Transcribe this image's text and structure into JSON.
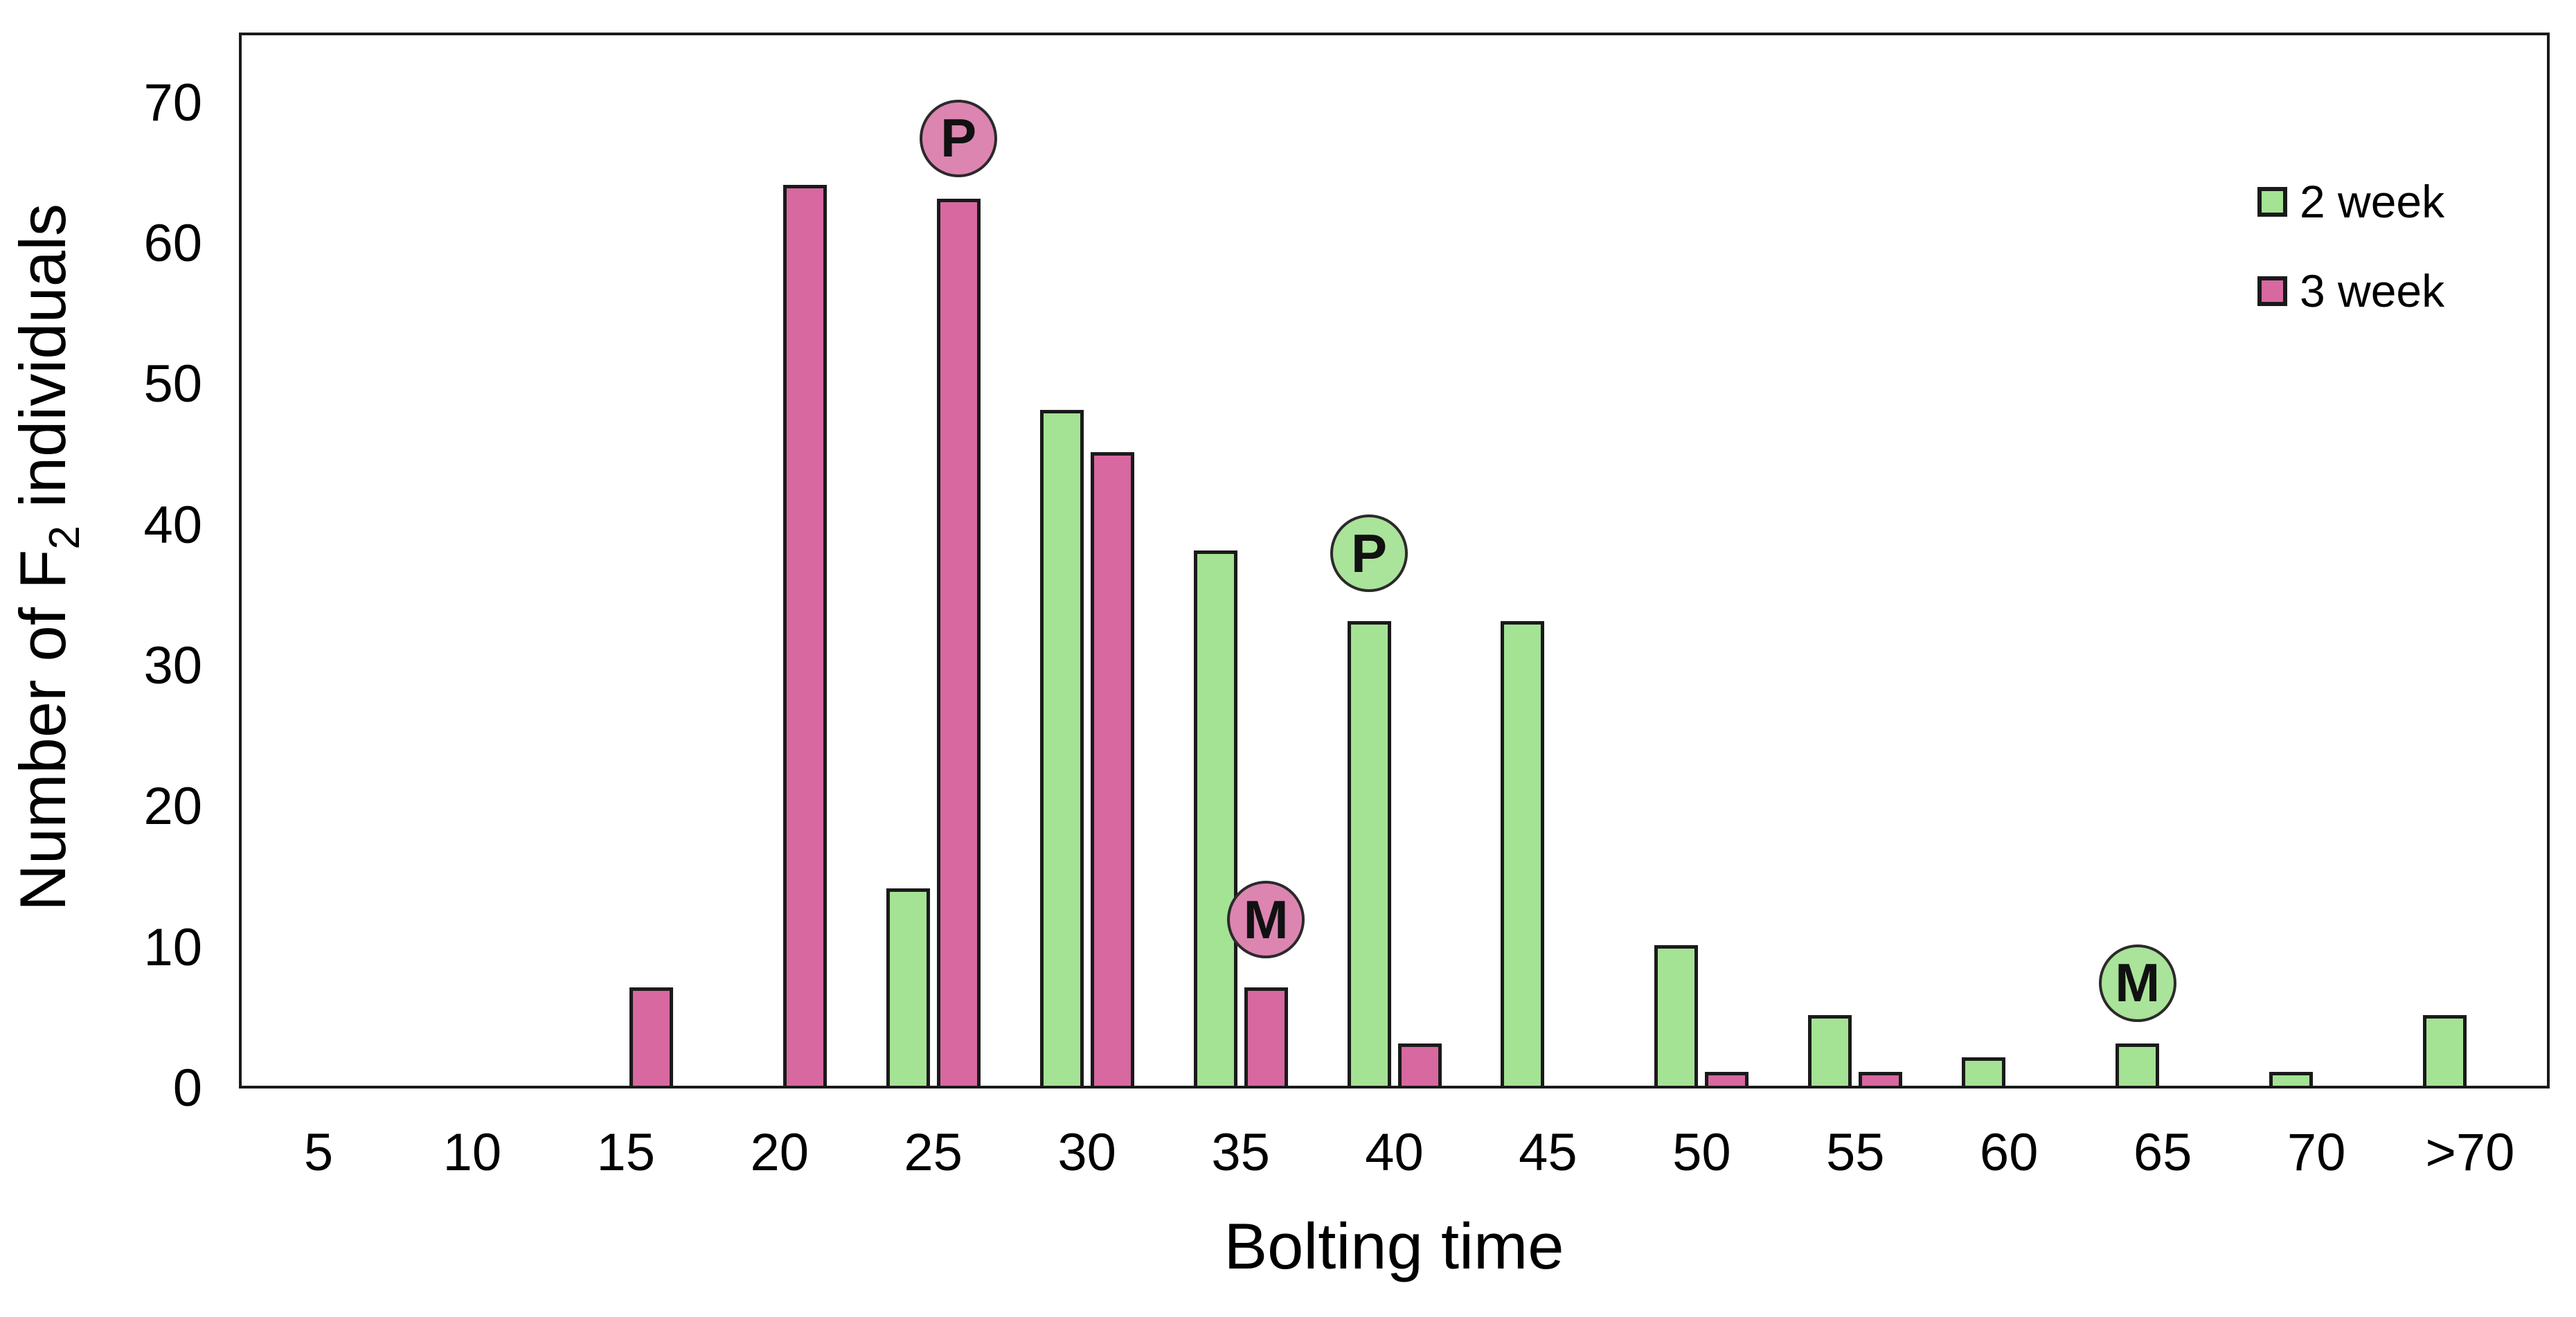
{
  "figure": {
    "background": "#ffffff",
    "frame_color": "#1a1a1a"
  },
  "chart_data": {
    "type": "bar",
    "title": "",
    "xlabel": "Bolting time",
    "ylabel": "Number of F2 individuals",
    "ylabel_prefix": "Number of F",
    "ylabel_sub": "2",
    "ylabel_suffix": " individuals",
    "categories": [
      "5",
      "10",
      "15",
      "20",
      "25",
      "30",
      "35",
      "40",
      "45",
      "50",
      "55",
      "60",
      "65",
      "70",
      ">70"
    ],
    "y_ticks": [
      "0",
      "10",
      "20",
      "30",
      "40",
      "50",
      "60",
      "70"
    ],
    "ylim": [
      0,
      75
    ],
    "grid": false,
    "legend_position": "top-right",
    "series": [
      {
        "name": "2 week",
        "color": "#A4E294",
        "values": [
          0,
          0,
          0,
          0,
          14,
          48,
          38,
          33,
          33,
          10,
          5,
          2,
          3,
          1,
          5
        ]
      },
      {
        "name": "3 week",
        "color": "#D768A0",
        "values": [
          0,
          0,
          7,
          64,
          63,
          45,
          7,
          3,
          0,
          1,
          1,
          0,
          0,
          0,
          0
        ]
      }
    ],
    "annotations": [
      {
        "label": "P",
        "series": "3 week",
        "category": "25",
        "y_value": 67.5,
        "fill": "#DC85B1"
      },
      {
        "label": "P",
        "series": "2 week",
        "category": "40",
        "y_value": 38,
        "fill": "#AAE39A"
      },
      {
        "label": "M",
        "series": "3 week",
        "category": "35",
        "y_value": 12,
        "fill": "#DC85B1"
      },
      {
        "label": "M",
        "series": "2 week",
        "category": "65",
        "y_value": 7.5,
        "fill": "#AAE39A"
      }
    ]
  }
}
